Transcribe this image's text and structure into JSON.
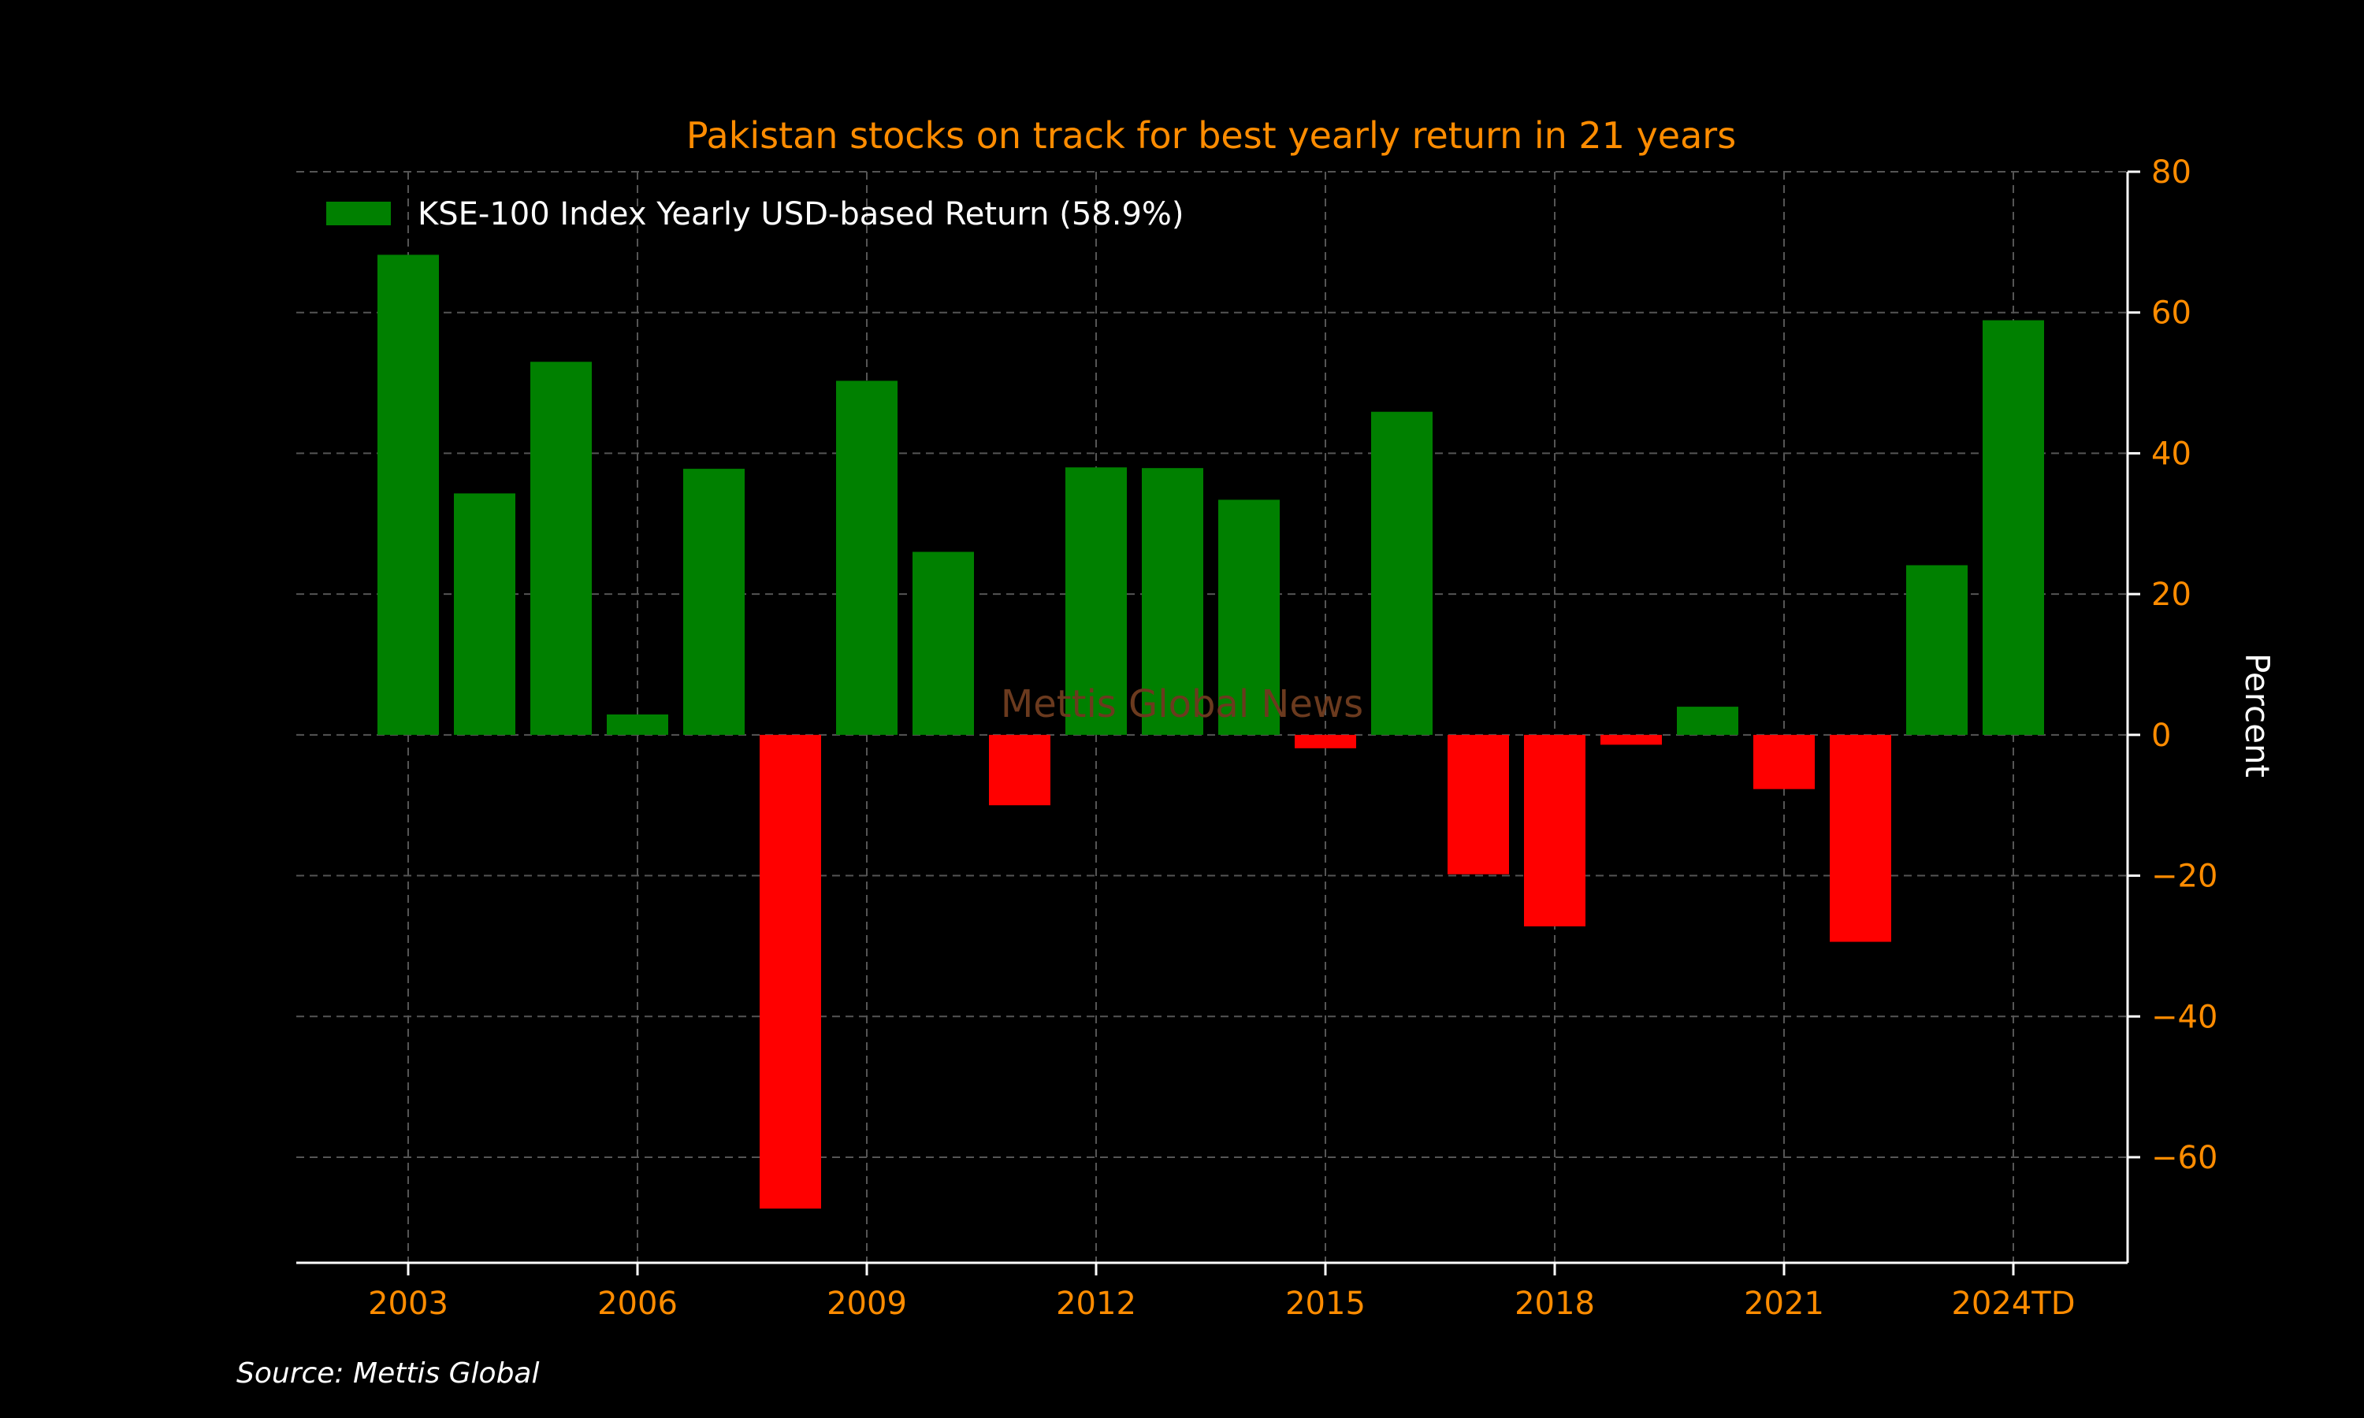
{
  "chart_data": {
    "type": "bar",
    "title": "Pakistan stocks on track for best yearly return in 21 years",
    "ylabel": "Percent",
    "legend": {
      "label": "KSE-100 Index Yearly USD-based Return (58.9%)",
      "placement": "top-left"
    },
    "watermark": "Mettis Global News",
    "source": "Source: Mettis Global",
    "categories": [
      "2003",
      "2004",
      "2005",
      "2006",
      "2007",
      "2008",
      "2009",
      "2010",
      "2011",
      "2012",
      "2013",
      "2014",
      "2015",
      "2016",
      "2017",
      "2018",
      "2019",
      "2020",
      "2021",
      "2022",
      "2023",
      "2024TD"
    ],
    "values": [
      68.2,
      34.3,
      53.0,
      2.9,
      37.8,
      -67.3,
      50.3,
      26.0,
      -10.0,
      38.0,
      37.9,
      33.4,
      -1.9,
      45.9,
      -19.8,
      -27.2,
      -1.4,
      4.0,
      -7.7,
      -29.4,
      24.1,
      58.9
    ],
    "x_tick_labels": [
      "2003",
      "2006",
      "2009",
      "2012",
      "2015",
      "2018",
      "2021",
      "2024TD"
    ],
    "y_ticks": [
      80,
      60,
      40,
      20,
      0,
      -20,
      -40,
      -60
    ],
    "y_tick_labels": [
      "80",
      "60",
      "40",
      "20",
      "0",
      "−20",
      "−40",
      "−60"
    ],
    "ylim": [
      -75,
      80
    ],
    "y_axis_side": "right",
    "grid": true,
    "colors": {
      "positive": "#008000",
      "negative": "#ff0000",
      "text_accent": "#ff8c00",
      "text_primary": "#ffffff",
      "background": "#000000",
      "grid": "#555555",
      "watermark": "#6b3a1e"
    }
  }
}
